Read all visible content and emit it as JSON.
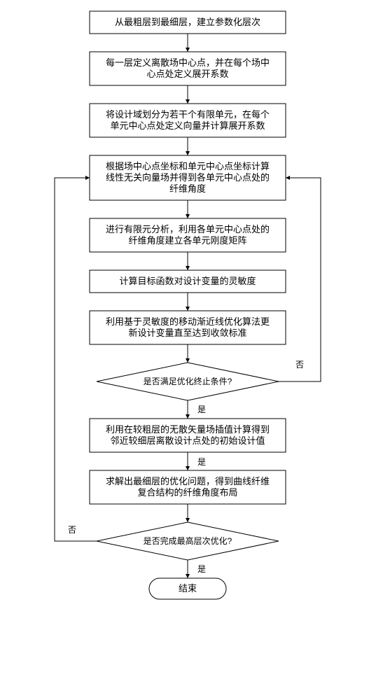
{
  "flowchart": {
    "type": "flowchart",
    "background_color": "#ffffff",
    "stroke_color": "#000000",
    "stroke_width": 1,
    "font_size_box": 13,
    "font_size_diamond": 12,
    "font_size_label": 12,
    "arrow_size": 6,
    "nodes": {
      "n1": {
        "type": "rect",
        "lines": [
          "从最粗层到最细层，建立参数化层次"
        ]
      },
      "n2": {
        "type": "rect",
        "lines": [
          "每一层定义离散场中心点，并在每个场中",
          "心点处定义展开系数"
        ]
      },
      "n3": {
        "type": "rect",
        "lines": [
          "将设计域划分为若干个有限单元，在每个",
          "单元中心点处定义向量并计算展开系数"
        ]
      },
      "n4": {
        "type": "rect",
        "lines": [
          "根据场中心点坐标和单元中心点坐标计算",
          "线性无关向量场并得到各单元中心点处的",
          "纤维角度"
        ]
      },
      "n5": {
        "type": "rect",
        "lines": [
          "进行有限元分析，利用各单元中心点处的",
          "纤维角度建立各单元刚度矩阵"
        ]
      },
      "n6": {
        "type": "rect",
        "lines": [
          "计算目标函数对设计变量的灵敏度"
        ]
      },
      "n7": {
        "type": "rect",
        "lines": [
          "利用基于灵敏度的移动渐近线优化算法更",
          "新设计变量直至达到收敛标准"
        ]
      },
      "d1": {
        "type": "diamond",
        "lines": [
          "是否满足优化终止条件?"
        ]
      },
      "n8": {
        "type": "rect",
        "lines": [
          "利用在较粗层的无散矢量场插值计算得到",
          "邻近较细层离散设计点处的初始设计值"
        ]
      },
      "n9": {
        "type": "rect",
        "lines": [
          "求解出最细层的优化问题，得到曲线纤维",
          "复合结构的纤维角度布局"
        ]
      },
      "d2": {
        "type": "diamond",
        "lines": [
          "是否完成最高层次优化?"
        ]
      },
      "end": {
        "type": "terminator",
        "lines": [
          "结束"
        ]
      }
    },
    "edge_labels": {
      "yes": "是",
      "no": "否"
    }
  }
}
